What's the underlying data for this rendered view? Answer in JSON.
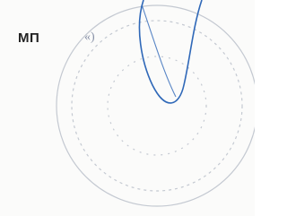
{
  "document": {
    "stamp_label": "МП",
    "quote_mark": "«)"
  }
}
